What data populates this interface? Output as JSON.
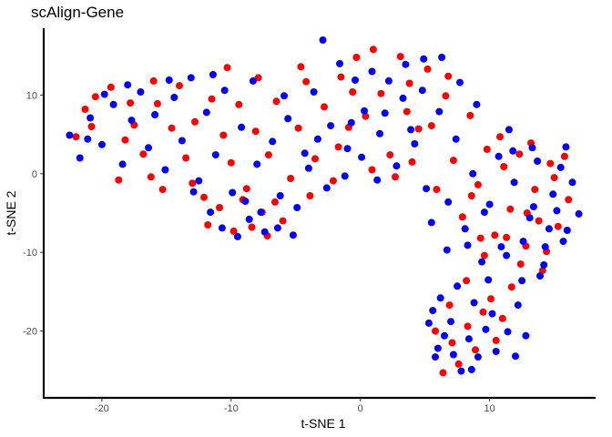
{
  "chart_data": {
    "type": "scatter",
    "title": "scAlign-Gene",
    "xlabel": "t-SNE 1",
    "ylabel": "t-SNE 2",
    "xlim": [
      -24.5,
      18.2
    ],
    "ylim": [
      -28.5,
      18.5
    ],
    "x_ticks": [
      -20,
      -10,
      0,
      10
    ],
    "y_ticks": [
      -20,
      -10,
      0,
      10
    ],
    "grid": false,
    "legend": "none",
    "series": [
      {
        "color": "#ff0000",
        "points": [
          [
            -22.0,
            4.7
          ],
          [
            -21.3,
            8.2
          ],
          [
            -20.5,
            9.8
          ],
          [
            -19.3,
            11.0
          ],
          [
            -18.2,
            4.3
          ],
          [
            -17.5,
            6.2
          ],
          [
            -16.8,
            2.5
          ],
          [
            -16.2,
            -0.4
          ],
          [
            -15.7,
            8.9
          ],
          [
            -15.3,
            -2.0
          ],
          [
            -14.6,
            5.8
          ],
          [
            -14.0,
            11.2
          ],
          [
            -13.5,
            2.0
          ],
          [
            -12.8,
            6.6
          ],
          [
            -12.1,
            -3.0
          ],
          [
            -11.5,
            9.5
          ],
          [
            -10.6,
            4.9
          ],
          [
            -10.0,
            1.4
          ],
          [
            -9.4,
            8.8
          ],
          [
            -8.8,
            -1.9
          ],
          [
            -8.1,
            5.4
          ],
          [
            -7.6,
            -4.9
          ],
          [
            -7.1,
            2.4
          ],
          [
            -6.5,
            9.2
          ],
          [
            -6.0,
            -6.0
          ],
          [
            -5.4,
            -0.6
          ],
          [
            -4.8,
            5.8
          ],
          [
            -4.2,
            11.7
          ],
          [
            -3.5,
            1.9
          ],
          [
            -2.8,
            8.5
          ],
          [
            -2.1,
            -0.9
          ],
          [
            -1.5,
            12.3
          ],
          [
            -0.9,
            5.9
          ],
          [
            -0.3,
            14.8
          ],
          [
            0.4,
            7.3
          ],
          [
            1.0,
            15.8
          ],
          [
            1.6,
            10.2
          ],
          [
            2.3,
            2.4
          ],
          [
            3.1,
            14.9
          ],
          [
            3.8,
            11.5
          ],
          [
            4.5,
            5.7
          ],
          [
            5.2,
            13.3
          ],
          [
            5.9,
            -2.0
          ],
          [
            6.6,
            9.9
          ],
          [
            7.2,
            1.7
          ],
          [
            7.9,
            -5.5
          ],
          [
            8.5,
            7.4
          ],
          [
            9.1,
            -1.4
          ],
          [
            9.8,
            3.1
          ],
          [
            10.4,
            -7.8
          ],
          [
            11.1,
            0.9
          ],
          [
            11.6,
            -4.5
          ],
          [
            12.3,
            2.5
          ],
          [
            12.8,
            -9.2
          ],
          [
            13.5,
            -2.0
          ],
          [
            14.1,
            -12.3
          ],
          [
            14.7,
            1.3
          ],
          [
            15.3,
            -6.7
          ],
          [
            16.1,
            -3.3
          ],
          [
            15.8,
            2.2
          ],
          [
            13.8,
            -6.0
          ],
          [
            12.4,
            -11.5
          ],
          [
            11.7,
            -14.4
          ],
          [
            11.0,
            -18.4
          ],
          [
            10.5,
            -21.2
          ],
          [
            9.5,
            -17.6
          ],
          [
            8.9,
            -22.4
          ],
          [
            8.3,
            -19.4
          ],
          [
            7.6,
            -24.2
          ],
          [
            7.1,
            -21.5
          ],
          [
            6.4,
            -25.3
          ],
          [
            5.8,
            -20.0
          ],
          [
            6.9,
            -16.7
          ],
          [
            8.2,
            -13.6
          ],
          [
            9.6,
            -10.4
          ],
          [
            10.1,
            -15.9
          ],
          [
            11.3,
            -8.1
          ],
          [
            12.9,
            -5.0
          ],
          [
            14.4,
            -9.9
          ],
          [
            15.0,
            -0.5
          ],
          [
            13.2,
            3.9
          ],
          [
            10.8,
            4.7
          ],
          [
            9.3,
            -8.2
          ],
          [
            8.6,
            -2.8
          ],
          [
            -18.7,
            -0.8
          ],
          [
            -20.8,
            6.0
          ],
          [
            -13.0,
            -1.2
          ],
          [
            -11.8,
            -6.5
          ],
          [
            -10.9,
            -4.3
          ],
          [
            -9.8,
            -7.3
          ],
          [
            -8.4,
            -6.8
          ],
          [
            -7.2,
            -7.9
          ],
          [
            -9.1,
            -3.3
          ],
          [
            -6.6,
            -3.6
          ],
          [
            -3.9,
            -2.8
          ],
          [
            -1.7,
            3.4
          ],
          [
            0.9,
            0.5
          ],
          [
            2.7,
            -0.4
          ],
          [
            4.0,
            1.5
          ],
          [
            5.5,
            6.1
          ],
          [
            6.8,
            12.4
          ],
          [
            3.6,
            7.9
          ],
          [
            -0.6,
            10.4
          ],
          [
            -4.6,
            13.6
          ],
          [
            -7.9,
            12.2
          ],
          [
            -10.3,
            13.5
          ],
          [
            -16.0,
            11.8
          ],
          [
            -17.8,
            9.0
          ]
        ]
      },
      {
        "color": "#0000ff",
        "points": [
          [
            -22.5,
            4.9
          ],
          [
            -21.7,
            2.0
          ],
          [
            -20.9,
            7.1
          ],
          [
            -20.0,
            3.7
          ],
          [
            -19.1,
            8.8
          ],
          [
            -18.4,
            1.2
          ],
          [
            -17.7,
            6.8
          ],
          [
            -17.0,
            10.4
          ],
          [
            -16.4,
            3.3
          ],
          [
            -15.9,
            7.5
          ],
          [
            -15.1,
            0.5
          ],
          [
            -14.4,
            9.7
          ],
          [
            -13.8,
            4.2
          ],
          [
            -13.1,
            12.2
          ],
          [
            -12.5,
            -0.9
          ],
          [
            -11.9,
            7.8
          ],
          [
            -11.2,
            2.4
          ],
          [
            -10.5,
            10.6
          ],
          [
            -9.9,
            -2.4
          ],
          [
            -9.2,
            5.9
          ],
          [
            -8.6,
            -5.8
          ],
          [
            -8.0,
            1.2
          ],
          [
            -7.4,
            -7.4
          ],
          [
            -6.8,
            4.1
          ],
          [
            -6.2,
            -2.8
          ],
          [
            -5.6,
            7.0
          ],
          [
            -4.9,
            -4.3
          ],
          [
            -4.3,
            2.6
          ],
          [
            -3.6,
            10.4
          ],
          [
            -2.9,
            17.0
          ],
          [
            -2.3,
            6.1
          ],
          [
            -1.6,
            14.0
          ],
          [
            -1.0,
            3.2
          ],
          [
            -0.4,
            11.9
          ],
          [
            0.3,
            8.0
          ],
          [
            0.9,
            13.0
          ],
          [
            1.5,
            5.1
          ],
          [
            2.2,
            11.8
          ],
          [
            2.8,
            1.0
          ],
          [
            3.5,
            13.9
          ],
          [
            4.2,
            3.8
          ],
          [
            4.8,
            10.6
          ],
          [
            5.5,
            -6.2
          ],
          [
            6.1,
            7.9
          ],
          [
            6.8,
            -3.6
          ],
          [
            7.4,
            4.4
          ],
          [
            8.1,
            -7.0
          ],
          [
            8.7,
            0.0
          ],
          [
            9.4,
            -11.2
          ],
          [
            10.0,
            -3.9
          ],
          [
            10.7,
            2.2
          ],
          [
            11.3,
            -10.4
          ],
          [
            11.9,
            -1.1
          ],
          [
            12.5,
            -13.6
          ],
          [
            13.1,
            -5.6
          ],
          [
            13.7,
            1.6
          ],
          [
            14.3,
            -9.3
          ],
          [
            14.9,
            -2.6
          ],
          [
            15.5,
            0.8
          ],
          [
            16.4,
            -1.1
          ],
          [
            16.9,
            -5.1
          ],
          [
            15.7,
            -8.6
          ],
          [
            13.9,
            -13.0
          ],
          [
            12.2,
            -16.7
          ],
          [
            11.4,
            -20.1
          ],
          [
            10.5,
            -22.6
          ],
          [
            9.7,
            -19.8
          ],
          [
            9.1,
            -23.3
          ],
          [
            8.4,
            -21.0
          ],
          [
            7.8,
            -25.1
          ],
          [
            7.2,
            -23.0
          ],
          [
            6.5,
            -20.6
          ],
          [
            5.8,
            -23.3
          ],
          [
            5.3,
            -19.0
          ],
          [
            6.2,
            -15.8
          ],
          [
            7.5,
            -14.3
          ],
          [
            8.8,
            -16.4
          ],
          [
            9.9,
            -13.5
          ],
          [
            10.9,
            -9.3
          ],
          [
            12.6,
            -8.6
          ],
          [
            13.4,
            -4.2
          ],
          [
            14.6,
            -7.0
          ],
          [
            15.9,
            3.4
          ],
          [
            11.5,
            5.6
          ],
          [
            9.0,
            8.8
          ],
          [
            7.7,
            11.6
          ],
          [
            6.3,
            14.8
          ],
          [
            4.9,
            14.6
          ],
          [
            3.3,
            9.6
          ],
          [
            1.9,
            7.7
          ],
          [
            -0.7,
            6.5
          ],
          [
            -2.6,
            -1.8
          ],
          [
            -3.3,
            4.4
          ],
          [
            -5.9,
            9.9
          ],
          [
            -8.3,
            11.8
          ],
          [
            -11.4,
            12.6
          ],
          [
            -14.8,
            11.9
          ],
          [
            -18.0,
            11.3
          ],
          [
            -19.8,
            10.1
          ],
          [
            -21.1,
            4.4
          ],
          [
            -12.9,
            -2.3
          ],
          [
            -11.6,
            -4.9
          ],
          [
            -10.7,
            -6.9
          ],
          [
            -9.5,
            -8.0
          ],
          [
            -8.9,
            -3.5
          ],
          [
            -7.7,
            -4.9
          ],
          [
            -6.4,
            -6.9
          ],
          [
            -5.2,
            -7.8
          ],
          [
            -4.0,
            0.7
          ],
          [
            -1.2,
            -0.3
          ],
          [
            0.1,
            2.1
          ],
          [
            1.3,
            -0.8
          ],
          [
            3.9,
            5.6
          ],
          [
            5.1,
            -1.9
          ],
          [
            6.7,
            -9.7
          ],
          [
            8.3,
            -9.1
          ],
          [
            9.6,
            -4.9
          ],
          [
            11.8,
            2.9
          ],
          [
            13.3,
            3.3
          ],
          [
            15.2,
            -4.7
          ],
          [
            16.0,
            -7.2
          ],
          [
            14.2,
            -11.6
          ],
          [
            12.8,
            -20.6
          ],
          [
            12.0,
            -23.2
          ],
          [
            10.2,
            -17.8
          ],
          [
            8.6,
            -24.9
          ],
          [
            7.0,
            -18.8
          ],
          [
            6.0,
            -22.2
          ],
          [
            5.6,
            -17.4
          ]
        ]
      }
    ]
  }
}
